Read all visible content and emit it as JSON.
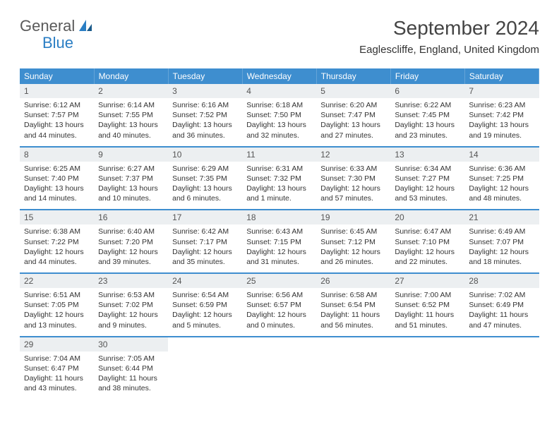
{
  "brand": {
    "part1": "General",
    "part2": "Blue"
  },
  "title": "September 2024",
  "location": "Eaglescliffe, England, United Kingdom",
  "colors": {
    "header_blue": "#3e8ecf",
    "daynum_bg": "#eceff1",
    "brand_blue": "#2a7ec4",
    "brand_gray": "#5a5a5a"
  },
  "weekdays": [
    "Sunday",
    "Monday",
    "Tuesday",
    "Wednesday",
    "Thursday",
    "Friday",
    "Saturday"
  ],
  "weeks": [
    [
      {
        "n": "1",
        "sunrise": "6:12 AM",
        "sunset": "7:57 PM",
        "daylight": "13 hours and 44 minutes."
      },
      {
        "n": "2",
        "sunrise": "6:14 AM",
        "sunset": "7:55 PM",
        "daylight": "13 hours and 40 minutes."
      },
      {
        "n": "3",
        "sunrise": "6:16 AM",
        "sunset": "7:52 PM",
        "daylight": "13 hours and 36 minutes."
      },
      {
        "n": "4",
        "sunrise": "6:18 AM",
        "sunset": "7:50 PM",
        "daylight": "13 hours and 32 minutes."
      },
      {
        "n": "5",
        "sunrise": "6:20 AM",
        "sunset": "7:47 PM",
        "daylight": "13 hours and 27 minutes."
      },
      {
        "n": "6",
        "sunrise": "6:22 AM",
        "sunset": "7:45 PM",
        "daylight": "13 hours and 23 minutes."
      },
      {
        "n": "7",
        "sunrise": "6:23 AM",
        "sunset": "7:42 PM",
        "daylight": "13 hours and 19 minutes."
      }
    ],
    [
      {
        "n": "8",
        "sunrise": "6:25 AM",
        "sunset": "7:40 PM",
        "daylight": "13 hours and 14 minutes."
      },
      {
        "n": "9",
        "sunrise": "6:27 AM",
        "sunset": "7:37 PM",
        "daylight": "13 hours and 10 minutes."
      },
      {
        "n": "10",
        "sunrise": "6:29 AM",
        "sunset": "7:35 PM",
        "daylight": "13 hours and 6 minutes."
      },
      {
        "n": "11",
        "sunrise": "6:31 AM",
        "sunset": "7:32 PM",
        "daylight": "13 hours and 1 minute."
      },
      {
        "n": "12",
        "sunrise": "6:33 AM",
        "sunset": "7:30 PM",
        "daylight": "12 hours and 57 minutes."
      },
      {
        "n": "13",
        "sunrise": "6:34 AM",
        "sunset": "7:27 PM",
        "daylight": "12 hours and 53 minutes."
      },
      {
        "n": "14",
        "sunrise": "6:36 AM",
        "sunset": "7:25 PM",
        "daylight": "12 hours and 48 minutes."
      }
    ],
    [
      {
        "n": "15",
        "sunrise": "6:38 AM",
        "sunset": "7:22 PM",
        "daylight": "12 hours and 44 minutes."
      },
      {
        "n": "16",
        "sunrise": "6:40 AM",
        "sunset": "7:20 PM",
        "daylight": "12 hours and 39 minutes."
      },
      {
        "n": "17",
        "sunrise": "6:42 AM",
        "sunset": "7:17 PM",
        "daylight": "12 hours and 35 minutes."
      },
      {
        "n": "18",
        "sunrise": "6:43 AM",
        "sunset": "7:15 PM",
        "daylight": "12 hours and 31 minutes."
      },
      {
        "n": "19",
        "sunrise": "6:45 AM",
        "sunset": "7:12 PM",
        "daylight": "12 hours and 26 minutes."
      },
      {
        "n": "20",
        "sunrise": "6:47 AM",
        "sunset": "7:10 PM",
        "daylight": "12 hours and 22 minutes."
      },
      {
        "n": "21",
        "sunrise": "6:49 AM",
        "sunset": "7:07 PM",
        "daylight": "12 hours and 18 minutes."
      }
    ],
    [
      {
        "n": "22",
        "sunrise": "6:51 AM",
        "sunset": "7:05 PM",
        "daylight": "12 hours and 13 minutes."
      },
      {
        "n": "23",
        "sunrise": "6:53 AM",
        "sunset": "7:02 PM",
        "daylight": "12 hours and 9 minutes."
      },
      {
        "n": "24",
        "sunrise": "6:54 AM",
        "sunset": "6:59 PM",
        "daylight": "12 hours and 5 minutes."
      },
      {
        "n": "25",
        "sunrise": "6:56 AM",
        "sunset": "6:57 PM",
        "daylight": "12 hours and 0 minutes."
      },
      {
        "n": "26",
        "sunrise": "6:58 AM",
        "sunset": "6:54 PM",
        "daylight": "11 hours and 56 minutes."
      },
      {
        "n": "27",
        "sunrise": "7:00 AM",
        "sunset": "6:52 PM",
        "daylight": "11 hours and 51 minutes."
      },
      {
        "n": "28",
        "sunrise": "7:02 AM",
        "sunset": "6:49 PM",
        "daylight": "11 hours and 47 minutes."
      }
    ],
    [
      {
        "n": "29",
        "sunrise": "7:04 AM",
        "sunset": "6:47 PM",
        "daylight": "11 hours and 43 minutes."
      },
      {
        "n": "30",
        "sunrise": "7:05 AM",
        "sunset": "6:44 PM",
        "daylight": "11 hours and 38 minutes."
      },
      null,
      null,
      null,
      null,
      null
    ]
  ],
  "labels": {
    "sunrise": "Sunrise:",
    "sunset": "Sunset:",
    "daylight": "Daylight:"
  }
}
